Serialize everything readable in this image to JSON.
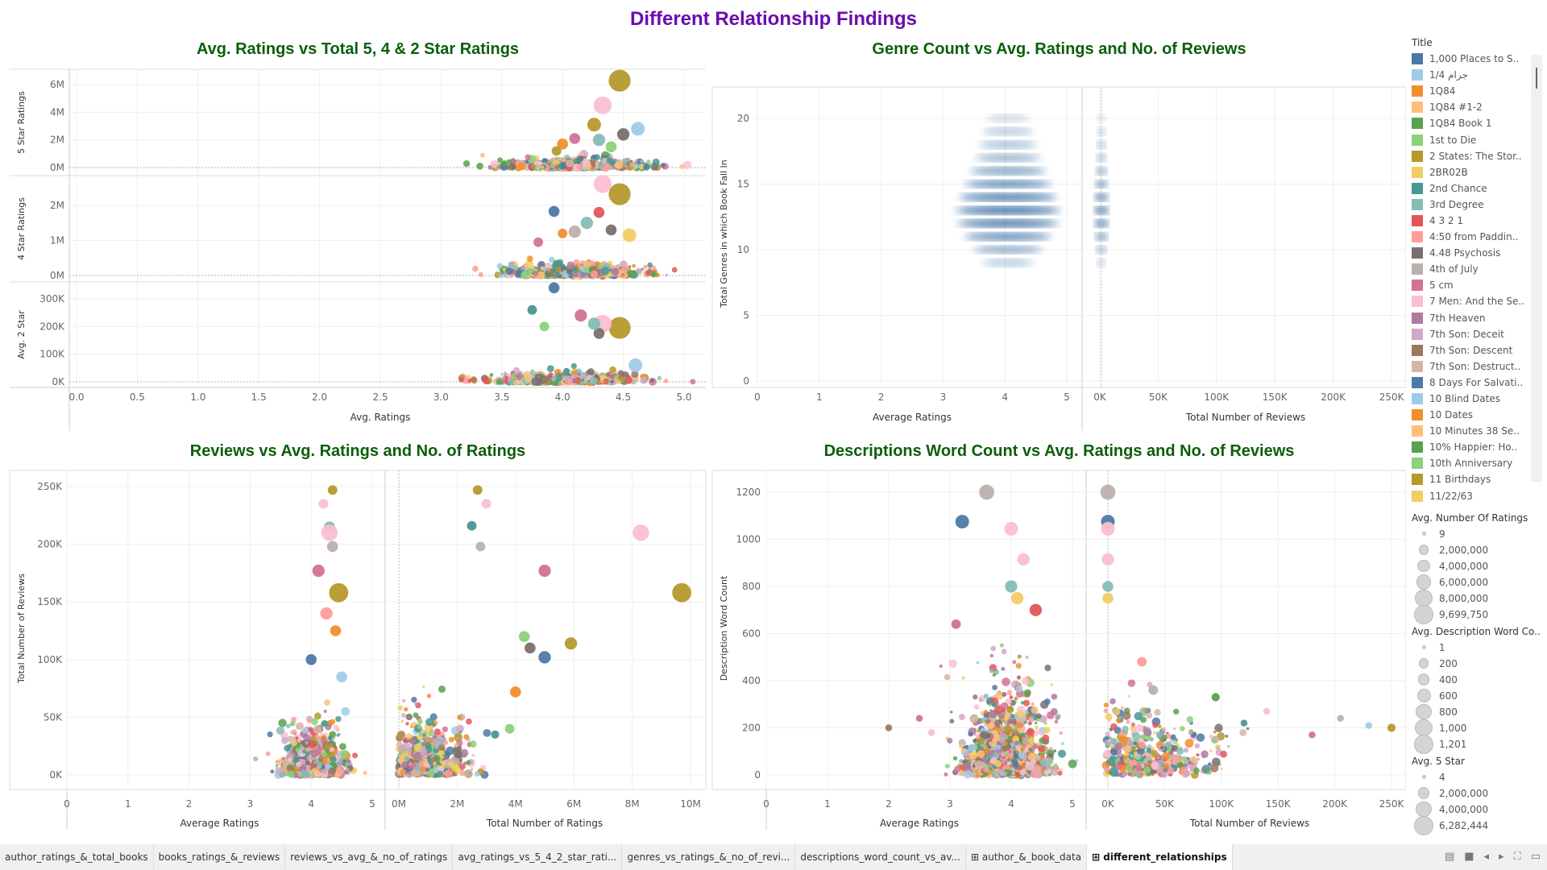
{
  "dashboard_title": "Different Relationship Findings",
  "palette": [
    "#4e79a7",
    "#a0cbe8",
    "#f28e2b",
    "#ffbe7d",
    "#59a14f",
    "#8cd17d",
    "#b6992d",
    "#f1ce63",
    "#499894",
    "#86bcb6",
    "#e15759",
    "#ff9d9a",
    "#79706e",
    "#bab0ac",
    "#d37295",
    "#fabfd2",
    "#b07aa1",
    "#d4a6c8",
    "#9d7660",
    "#d7b5a6"
  ],
  "colors": {
    "title": "#6a0dad",
    "panel_title": "#0b5e0b",
    "density": "#1f5a96"
  },
  "chart_data": [
    {
      "type": "scatter",
      "title": "Avg. Ratings vs Total 5, 4 & 2 Star Ratings",
      "xlabel": "Avg. Ratings",
      "xlim": [
        0,
        5
      ],
      "xticks": [
        "0.0",
        "0.5",
        "1.0",
        "1.5",
        "2.0",
        "2.5",
        "3.0",
        "3.5",
        "4.0",
        "4.5",
        "5.0"
      ],
      "rows": [
        {
          "ylabel": "5 Star Ratings",
          "ylim": [
            0,
            6000000
          ],
          "yticks": [
            {
              "v": 0,
              "l": "0M"
            },
            {
              "v": 2000000,
              "l": "2M"
            },
            {
              "v": 4000000,
              "l": "4M"
            },
            {
              "v": 6000000,
              "l": "6M"
            }
          ],
          "cloud": {
            "x_mean": 4.1,
            "x_sd": 0.28,
            "y_scale": 300000
          },
          "points": [
            [
              4.47,
              6280000,
              16,
              6
            ],
            [
              4.33,
              4500000,
              13,
              15
            ],
            [
              4.26,
              3100000,
              10,
              6
            ],
            [
              4.62,
              2800000,
              10,
              1
            ],
            [
              4.5,
              2400000,
              9,
              12
            ],
            [
              4.1,
              2100000,
              8,
              14
            ],
            [
              4.3,
              2000000,
              9,
              9
            ],
            [
              4.0,
              1700000,
              8,
              2
            ],
            [
              4.4,
              1500000,
              8,
              5
            ],
            [
              3.95,
              1200000,
              7,
              6
            ]
          ]
        },
        {
          "ylabel": "4 Star Ratings",
          "ylim": [
            0,
            2500000
          ],
          "yticks": [
            {
              "v": 0,
              "l": "0M"
            },
            {
              "v": 1000000,
              "l": "1M"
            },
            {
              "v": 2000000,
              "l": "2M"
            }
          ],
          "cloud": {
            "x_mean": 4.1,
            "x_sd": 0.28,
            "y_scale": 150000
          },
          "points": [
            [
              4.47,
              2320000,
              16,
              6
            ],
            [
              4.33,
              2610000,
              13,
              15
            ],
            [
              3.93,
              1830000,
              8,
              0
            ],
            [
              4.3,
              1800000,
              8,
              10
            ],
            [
              4.2,
              1500000,
              9,
              9
            ],
            [
              4.4,
              1300000,
              8,
              12
            ],
            [
              4.1,
              1250000,
              9,
              13
            ],
            [
              4.55,
              1150000,
              10,
              7
            ],
            [
              4.0,
              1200000,
              7,
              2
            ],
            [
              3.8,
              950000,
              7,
              14
            ]
          ]
        },
        {
          "ylabel": "Avg. 2 Star",
          "ylim": [
            0,
            330000
          ],
          "yticks": [
            {
              "v": 0,
              "l": "0K"
            },
            {
              "v": 100000,
              "l": "100K"
            },
            {
              "v": 200000,
              "l": "200K"
            },
            {
              "v": 300000,
              "l": "300K"
            }
          ],
          "cloud": {
            "x_mean": 4.0,
            "x_sd": 0.3,
            "y_scale": 15000
          },
          "points": [
            [
              4.47,
              195000,
              16,
              6
            ],
            [
              4.33,
              210000,
              13,
              15
            ],
            [
              3.93,
              340000,
              8,
              0
            ],
            [
              4.15,
              240000,
              9,
              14
            ],
            [
              4.3,
              175000,
              8,
              12
            ],
            [
              4.26,
              210000,
              9,
              9
            ],
            [
              3.75,
              260000,
              7,
              8
            ],
            [
              3.85,
              200000,
              7,
              5
            ],
            [
              4.6,
              60000,
              10,
              1
            ]
          ]
        }
      ]
    },
    {
      "type": "heatmap",
      "title": "Genre Count vs Avg. Ratings and No. of Reviews",
      "ylabel": "Total Genres in which Book Fall In",
      "ylim": [
        0,
        22
      ],
      "yticks": [
        "0",
        "5",
        "10",
        "15",
        "20"
      ],
      "left": {
        "xlabel": "Average Ratings",
        "xlim": [
          0,
          5
        ],
        "xticks": [
          "0",
          "1",
          "2",
          "3",
          "4",
          "5"
        ]
      },
      "right": {
        "xlabel": "Total Number of Reviews",
        "xlim": [
          0,
          250000
        ],
        "xticks": [
          "0K",
          "50K",
          "100K",
          "150K",
          "200K",
          "250K"
        ]
      },
      "density": [
        {
          "genres": 20,
          "intensity": 0.12
        },
        {
          "genres": 19,
          "intensity": 0.25
        },
        {
          "genres": 18,
          "intensity": 0.35
        },
        {
          "genres": 17,
          "intensity": 0.45
        },
        {
          "genres": 16,
          "intensity": 0.6
        },
        {
          "genres": 15,
          "intensity": 0.75
        },
        {
          "genres": 14,
          "intensity": 0.9
        },
        {
          "genres": 13,
          "intensity": 1.0
        },
        {
          "genres": 12,
          "intensity": 0.95
        },
        {
          "genres": 11,
          "intensity": 0.75
        },
        {
          "genres": 10,
          "intensity": 0.5
        },
        {
          "genres": 9,
          "intensity": 0.25
        }
      ]
    },
    {
      "type": "scatter",
      "title": "Reviews vs Avg. Ratings and No. of Ratings",
      "ylabel": "Total Number of Reviews",
      "ylim": [
        0,
        260000
      ],
      "yticks": [
        {
          "v": 0,
          "l": "0K"
        },
        {
          "v": 50000,
          "l": "50K"
        },
        {
          "v": 100000,
          "l": "100K"
        },
        {
          "v": 150000,
          "l": "150K"
        },
        {
          "v": 200000,
          "l": "200K"
        },
        {
          "v": 250000,
          "l": "250K"
        }
      ],
      "left": {
        "xlabel": "Average Ratings",
        "xlim": [
          0,
          5
        ],
        "xticks": [
          "0",
          "1",
          "2",
          "3",
          "4",
          "5"
        ],
        "cloud": {
          "x_mean": 4.05,
          "x_sd": 0.25,
          "y_scale": 18000
        },
        "points": [
          [
            4.35,
            247000,
            7,
            6
          ],
          [
            4.2,
            235000,
            7,
            15
          ],
          [
            4.3,
            215000,
            8,
            9
          ],
          [
            4.3,
            210000,
            12,
            15
          ],
          [
            4.35,
            198000,
            8,
            13
          ],
          [
            4.45,
            158000,
            14,
            6
          ],
          [
            4.12,
            177000,
            9,
            14
          ],
          [
            4.25,
            140000,
            9,
            11
          ],
          [
            4.4,
            125000,
            8,
            2
          ],
          [
            4.0,
            100000,
            8,
            0
          ],
          [
            4.5,
            85000,
            8,
            1
          ]
        ]
      },
      "right": {
        "xlabel": "Total Number of Ratings",
        "xlim": [
          0,
          10000000
        ],
        "xticks": [
          "0M",
          "2M",
          "4M",
          "6M",
          "8M",
          "10M"
        ],
        "cloud": {
          "x_mean": 700000,
          "x_sd": 800000,
          "y_scale": 22000
        },
        "points": [
          [
            2700000,
            247000,
            7,
            6
          ],
          [
            3000000,
            235000,
            7,
            15
          ],
          [
            2500000,
            216000,
            7,
            8
          ],
          [
            2800000,
            198000,
            7,
            13
          ],
          [
            8300000,
            210000,
            12,
            15
          ],
          [
            9700000,
            158000,
            14,
            6
          ],
          [
            5000000,
            177000,
            9,
            14
          ],
          [
            5900000,
            114000,
            9,
            6
          ],
          [
            5000000,
            102000,
            9,
            0
          ],
          [
            4500000,
            110000,
            8,
            12
          ],
          [
            4300000,
            120000,
            8,
            5
          ],
          [
            4000000,
            72000,
            8,
            2
          ],
          [
            3800000,
            40000,
            7,
            5
          ],
          [
            3300000,
            35000,
            6,
            8
          ]
        ]
      }
    },
    {
      "type": "scatter",
      "title": "Descriptions Word Count vs Avg. Ratings and No. of Reviews",
      "ylabel": "Description Word Count",
      "ylim": [
        0,
        1260
      ],
      "yticks": [
        {
          "v": 0,
          "l": "0"
        },
        {
          "v": 200,
          "l": "200"
        },
        {
          "v": 400,
          "l": "400"
        },
        {
          "v": 600,
          "l": "600"
        },
        {
          "v": 800,
          "l": "800"
        },
        {
          "v": 1000,
          "l": "1000"
        },
        {
          "v": 1200,
          "l": "1200"
        }
      ],
      "left": {
        "xlabel": "Average Ratings",
        "xlim": [
          0,
          5
        ],
        "xticks": [
          "0",
          "1",
          "2",
          "3",
          "4",
          "5"
        ],
        "cloud": {
          "x_mean": 3.95,
          "x_sd": 0.33,
          "y_scale": 160
        },
        "points": [
          [
            3.6,
            1200,
            11,
            13
          ],
          [
            3.2,
            1075,
            10,
            0
          ],
          [
            4.0,
            1045,
            10,
            15
          ],
          [
            4.2,
            915,
            9,
            15
          ],
          [
            4.0,
            800,
            9,
            9
          ],
          [
            4.1,
            750,
            9,
            7
          ],
          [
            4.4,
            700,
            9,
            10
          ],
          [
            3.1,
            640,
            7,
            14
          ],
          [
            2.0,
            200,
            5,
            18
          ],
          [
            2.5,
            240,
            5,
            14
          ],
          [
            2.7,
            180,
            5,
            15
          ]
        ]
      },
      "right": {
        "xlabel": "Total Number of Reviews",
        "xlim": [
          0,
          250000
        ],
        "xticks": [
          "0K",
          "50K",
          "100K",
          "150K",
          "200K",
          "250K"
        ],
        "cloud": {
          "x_mean": 15000,
          "x_sd": 40000,
          "y_scale": 140
        },
        "points": [
          [
            0,
            1200,
            11,
            13
          ],
          [
            0,
            1075,
            10,
            0
          ],
          [
            0,
            1045,
            10,
            15
          ],
          [
            0,
            915,
            9,
            15
          ],
          [
            0,
            800,
            8,
            9
          ],
          [
            0,
            750,
            8,
            7
          ],
          [
            30000,
            480,
            7,
            11
          ],
          [
            40000,
            360,
            7,
            13
          ],
          [
            250000,
            200,
            6,
            6
          ],
          [
            230000,
            210,
            5,
            1
          ],
          [
            205000,
            240,
            5,
            13
          ],
          [
            180000,
            170,
            5,
            14
          ],
          [
            140000,
            270,
            5,
            15
          ],
          [
            95000,
            330,
            6,
            4
          ],
          [
            120000,
            220,
            5,
            8
          ]
        ]
      }
    }
  ],
  "legend": {
    "title_header": "Title",
    "titles": [
      "1,000 Places to S..",
      "جرام 1/4",
      "1Q84",
      "1Q84 #1-2",
      "1Q84 Book 1",
      "1st to Die",
      "2 States: The Stor..",
      "2BR02B",
      "2nd Chance",
      "3rd Degree",
      "4  3  2  1",
      "4:50 from Paddin..",
      "4.48 Psychosis",
      "4th of July",
      "5 cm",
      "7 Men: And the Se..",
      "7th Heaven",
      "7th Son: Deceit",
      "7th Son: Descent",
      "7th Son: Destruct..",
      "8 Days For Salvati..",
      "10 Blind Dates",
      "10 Dates",
      "10 Minutes 38 Se..",
      "10% Happier: Ho..",
      "10th Anniversary",
      "11 Birthdays",
      "11/22/63"
    ],
    "size_legends": [
      {
        "header": "Avg. Number Of Ratings",
        "items": [
          "9",
          "2,000,000",
          "4,000,000",
          "6,000,000",
          "8,000,000",
          "9,699,750"
        ]
      },
      {
        "header": "Avg. Description Word Co..",
        "items": [
          "1",
          "200",
          "400",
          "600",
          "800",
          "1,000",
          "1,201"
        ]
      },
      {
        "header": "Avg. 5 Star",
        "items": [
          "4",
          "2,000,000",
          "4,000,000",
          "6,282,444"
        ]
      }
    ]
  },
  "tabs": [
    {
      "label": "author_ratings_&_total_books",
      "active": false
    },
    {
      "label": "books_ratings_&_reviews",
      "active": false
    },
    {
      "label": "reviews_vs_avg_&_no_of_ratings",
      "active": false
    },
    {
      "label": "avg_ratings_vs_5_4_2_star_rati...",
      "active": false
    },
    {
      "label": "genres_vs_ratings_&_no_of_revi...",
      "active": false
    },
    {
      "label": "descriptions_word_count_vs_av...",
      "active": false
    },
    {
      "label": "⊞ author_&_book_data",
      "active": false
    },
    {
      "label": "⊞ different_relationships",
      "active": true
    }
  ]
}
